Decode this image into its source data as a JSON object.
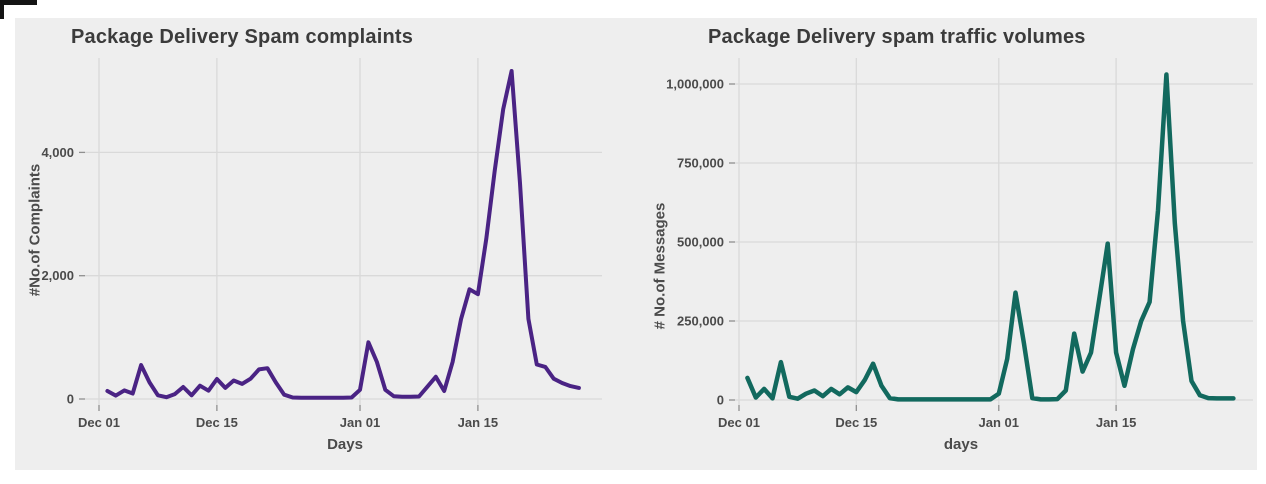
{
  "page": {
    "background": "#ffffff",
    "figure_background": "#eeeeee",
    "gridline_color": "#d9d9d9",
    "tick_color": "#8f8f8f",
    "title_color": "#3b3b3b",
    "label_color": "#4b4b4b"
  },
  "chart_data": [
    {
      "type": "line",
      "title": "Package Delivery Spam complaints",
      "xlabel": "Days",
      "ylabel": "#No.of Complaints",
      "line_color": "#4a2384",
      "grid": true,
      "legend": "none",
      "ylim": [
        0,
        5500
      ],
      "y_tick_values": [
        0,
        2000,
        4000
      ],
      "y_tick_labels": [
        "0",
        "2,000",
        "4,000"
      ],
      "x_tick_days": [
        0,
        14,
        31,
        45
      ],
      "x_tick_labels": [
        "Dec 01",
        "Dec 15",
        "Jan 01",
        "Jan 15"
      ],
      "x_range_days": [
        0,
        60
      ],
      "start_date": "Dec 02",
      "start_day": 1,
      "values": [
        130,
        55,
        140,
        90,
        550,
        270,
        60,
        30,
        80,
        195,
        60,
        215,
        135,
        325,
        180,
        300,
        245,
        330,
        480,
        500,
        270,
        70,
        25,
        20,
        20,
        20,
        20,
        20,
        20,
        25,
        150,
        920,
        600,
        150,
        45,
        35,
        35,
        40,
        200,
        360,
        130,
        600,
        1300,
        1780,
        1700,
        2600,
        3700,
        4700,
        5320,
        3500,
        1300,
        560,
        520,
        330,
        260,
        210,
        180
      ]
    },
    {
      "type": "line",
      "title": "Package Delivery spam traffic volumes",
      "xlabel": "days",
      "ylabel": "# No.of Messages",
      "line_color": "#12695e",
      "grid": true,
      "legend": "none",
      "ylim": [
        0,
        1060000
      ],
      "y_tick_values": [
        0,
        250000,
        500000,
        750000,
        1000000
      ],
      "y_tick_labels": [
        "0",
        "250,000",
        "500,000",
        "750,000",
        "1,000,000"
      ],
      "x_tick_days": [
        0,
        14,
        31,
        45
      ],
      "x_tick_labels": [
        "Dec 01",
        "Dec 15",
        "Jan 01",
        "Jan 15"
      ],
      "x_range_days": [
        0,
        60
      ],
      "start_date": "Dec 02",
      "start_day": 1,
      "values": [
        70000,
        8000,
        35000,
        5000,
        120000,
        10000,
        4000,
        20000,
        30000,
        12000,
        35000,
        18000,
        40000,
        25000,
        63000,
        115000,
        45000,
        6000,
        2000,
        2000,
        2000,
        2000,
        2000,
        2000,
        2000,
        2000,
        2000,
        2000,
        2000,
        2000,
        20000,
        130000,
        340000,
        180000,
        6000,
        2000,
        2000,
        3000,
        30000,
        210000,
        90000,
        150000,
        320000,
        495000,
        150000,
        45000,
        160000,
        250000,
        310000,
        600000,
        1030000,
        560000,
        250000,
        60000,
        15000,
        6000,
        5000,
        5000,
        5000
      ]
    }
  ]
}
